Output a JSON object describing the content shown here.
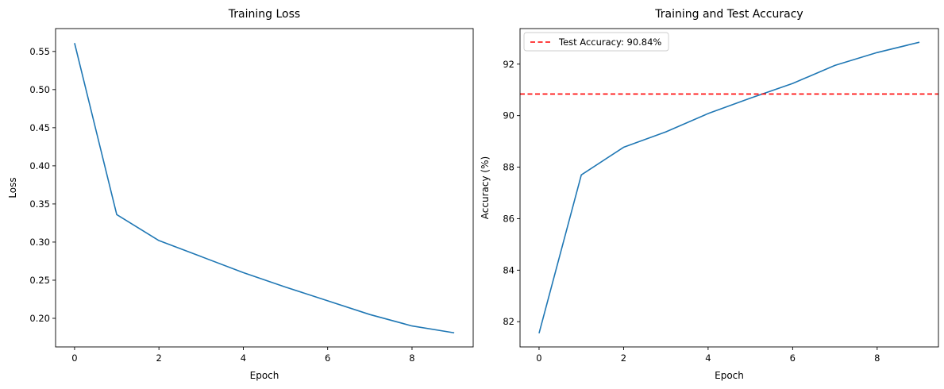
{
  "chart_data": [
    {
      "type": "line",
      "title": "Training Loss",
      "xlabel": "Epoch",
      "ylabel": "Loss",
      "xlim": [
        -0.45,
        9.45
      ],
      "ylim": [
        0.1625,
        0.58
      ],
      "xticks": [
        0,
        2,
        4,
        6,
        8
      ],
      "xtick_labels": [
        "0",
        "2",
        "4",
        "6",
        "8"
      ],
      "yticks": [
        0.2,
        0.25,
        0.3,
        0.35,
        0.4,
        0.45,
        0.5,
        0.55
      ],
      "ytick_labels": [
        "0.20",
        "0.25",
        "0.30",
        "0.35",
        "0.40",
        "0.45",
        "0.50",
        "0.55"
      ],
      "grid": false,
      "series": [
        {
          "color": "#1f77b4",
          "x": [
            0,
            1,
            2,
            3,
            4,
            5,
            6,
            7,
            8,
            9
          ],
          "y": [
            0.561,
            0.336,
            0.302,
            0.281,
            0.26,
            0.241,
            0.223,
            0.205,
            0.19,
            0.181
          ]
        }
      ]
    },
    {
      "type": "line",
      "title": "Training and Test Accuracy",
      "xlabel": "Epoch",
      "ylabel": "Accuracy (%)",
      "xlim": [
        -0.45,
        9.45
      ],
      "ylim": [
        81.02,
        93.38
      ],
      "xticks": [
        0,
        2,
        4,
        6,
        8
      ],
      "xtick_labels": [
        "0",
        "2",
        "4",
        "6",
        "8"
      ],
      "yticks": [
        82,
        84,
        86,
        88,
        90,
        92
      ],
      "ytick_labels": [
        "82",
        "84",
        "86",
        "88",
        "90",
        "92"
      ],
      "grid": false,
      "legend_position": "top-left",
      "series": [
        {
          "color": "#1f77b4",
          "x": [
            0,
            1,
            2,
            3,
            4,
            5,
            6,
            7,
            8,
            9
          ],
          "y": [
            81.55,
            87.7,
            88.77,
            89.37,
            90.08,
            90.68,
            91.25,
            91.95,
            92.45,
            92.85
          ]
        }
      ],
      "reference_lines": [
        {
          "orientation": "horizontal",
          "y": 90.84,
          "color": "#ff0000",
          "style": "dashed",
          "legend_label": "Test Accuracy: 90.84%"
        }
      ]
    }
  ]
}
